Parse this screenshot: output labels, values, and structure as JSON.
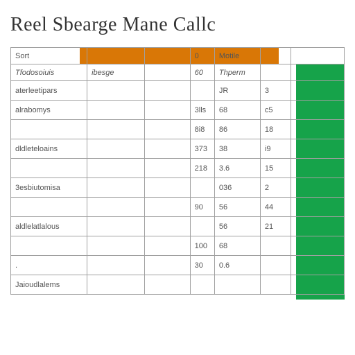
{
  "title": "Reel Sbearge Mane Callc",
  "header": {
    "orange_label": "Sort",
    "col_num": "0",
    "col_month": "Motile"
  },
  "subheader": {
    "col1": "Tfodosoiuis",
    "col2": "ibesge",
    "col3": "60",
    "col4": "Thperm"
  },
  "rows": [
    {
      "label": "aterleetipars",
      "desc": "",
      "num": "",
      "data1": "JR",
      "data2": "3"
    },
    {
      "label": "alrabomys",
      "desc": "",
      "num": "3lls",
      "data1": "68",
      "data2": "c5"
    },
    {
      "label": "",
      "desc": "",
      "num": "8i8",
      "data1": "86",
      "data2": "18"
    },
    {
      "label": "dldleteloains",
      "desc": "",
      "num": "373",
      "data1": "38",
      "data2": "i9"
    },
    {
      "label": "",
      "desc": "",
      "num": "218",
      "data1": "3.6",
      "data2": "15"
    },
    {
      "label": "3esbiutomisa",
      "desc": "",
      "num": "",
      "data1": "036",
      "data2": "2"
    },
    {
      "label": "",
      "desc": "",
      "num": "90",
      "data1": "56",
      "data2": "44"
    },
    {
      "label": "aldlelatlalous",
      "desc": "",
      "num": "",
      "data1": "56",
      "data2": "21"
    },
    {
      "label": "",
      "desc": "",
      "num": "100",
      "data1": "68",
      "data2": ""
    },
    {
      "label": ".",
      "desc": "",
      "num": "30",
      "data1": "0.6",
      "data2": ""
    },
    {
      "label": "Jaioudlalems",
      "desc": "",
      "num": "",
      "data1": "",
      "data2": ""
    }
  ],
  "colors": {
    "orange": "#d97706",
    "green": "#16a34a",
    "border": "#a0a0a0",
    "text": "#555555"
  }
}
